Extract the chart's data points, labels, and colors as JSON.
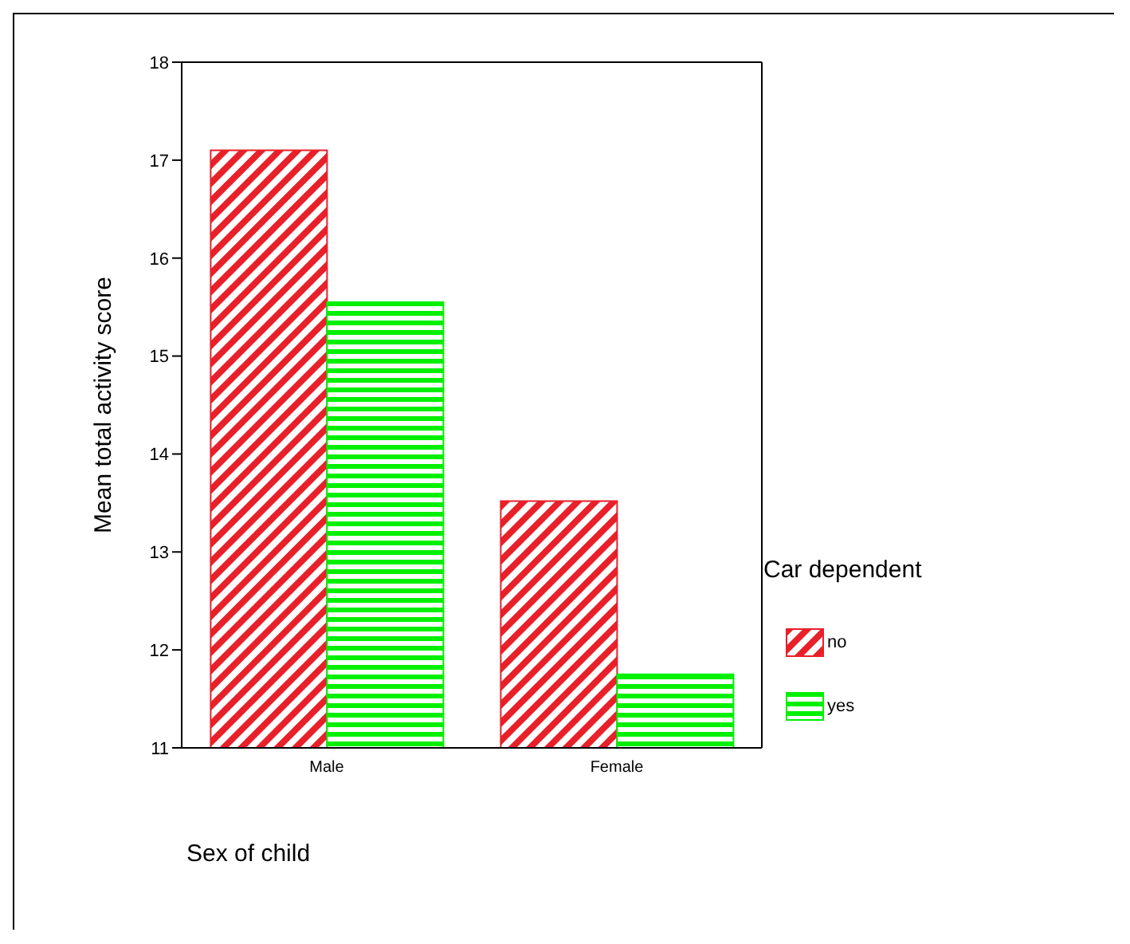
{
  "chart_data": {
    "type": "bar",
    "xlabel": "Sex of child",
    "ylabel": "Mean total activity score",
    "legend_title": "Car dependent",
    "categories": [
      "Male",
      "Female"
    ],
    "series": [
      {
        "name": "no",
        "color": "#e8202a",
        "values": [
          17.1,
          13.52
        ]
      },
      {
        "name": "yes",
        "color": "#00f000",
        "values": [
          15.55,
          11.75
        ]
      }
    ],
    "ylim": [
      11,
      18
    ],
    "yticks": [
      11,
      12,
      13,
      14,
      15,
      16,
      17,
      18
    ],
    "legend": "right"
  }
}
